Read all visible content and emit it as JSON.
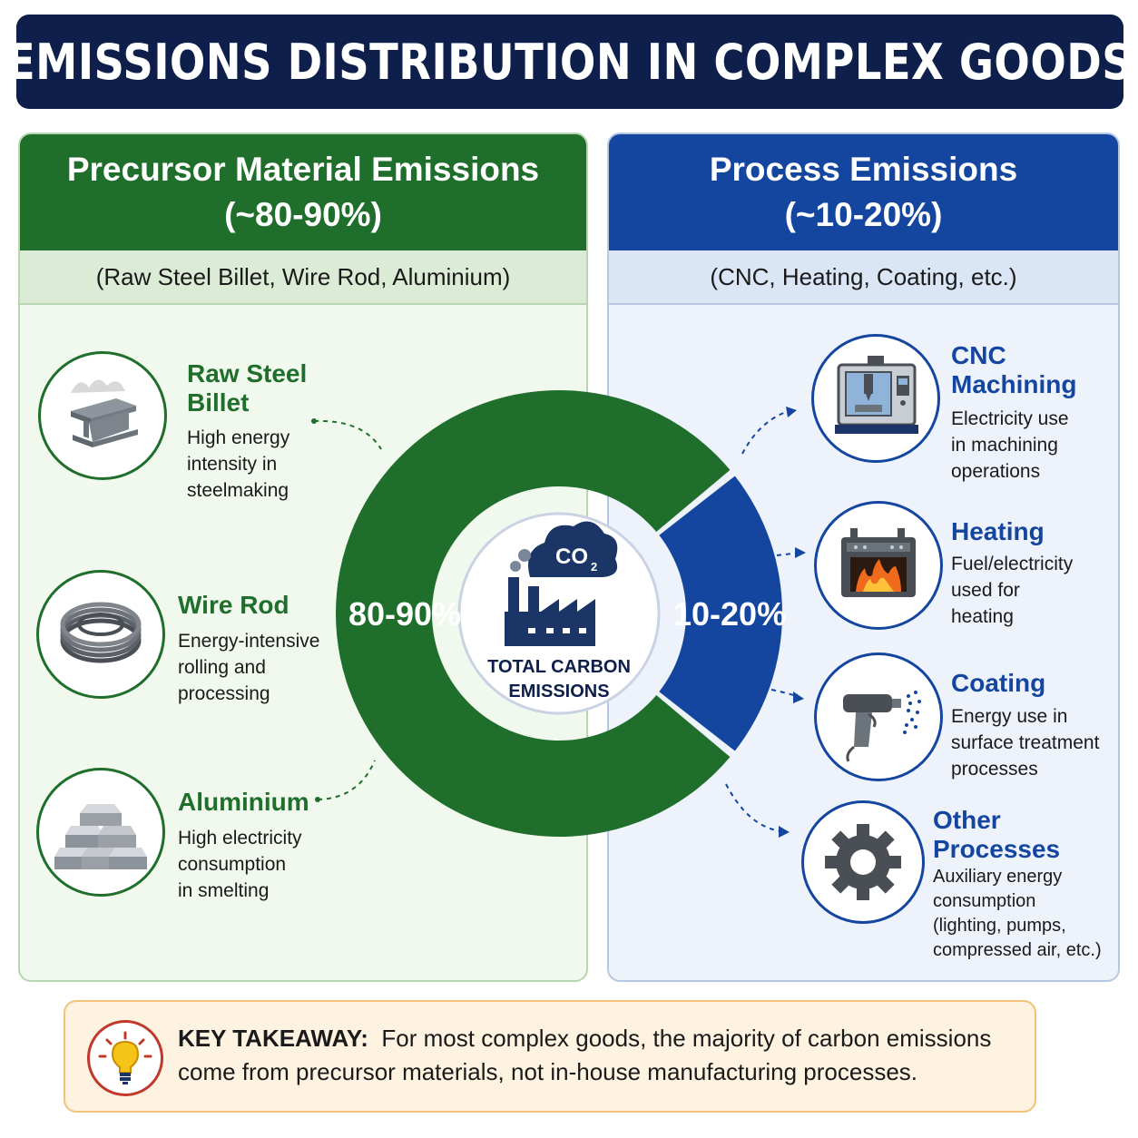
{
  "title": "EMISSIONS DISTRIBUTION IN COMPLEX GOODS",
  "left_panel": {
    "heading": "Precursor Material Emissions",
    "range": "(~80-90%)",
    "subtitle": "(Raw Steel Billet, Wire Rod, Aluminium)",
    "items": [
      {
        "title_line1": "Raw Steel",
        "title_line2": "Billet",
        "desc": [
          "High energy",
          "intensity in",
          "steelmaking"
        ],
        "icon": "steel-billet-icon"
      },
      {
        "title_line1": "Wire Rod",
        "desc": [
          "Energy-intensive",
          "rolling and",
          "processing"
        ],
        "icon": "wire-coil-icon"
      },
      {
        "title_line1": "Aluminium",
        "desc": [
          "High electricity",
          "consumption",
          "in smelting"
        ],
        "icon": "aluminium-ingots-icon"
      }
    ]
  },
  "right_panel": {
    "heading": "Process Emissions",
    "range": "(~10-20%)",
    "subtitle": "(CNC, Heating, Coating, etc.)",
    "items": [
      {
        "title_line1": "CNC",
        "title_line2": "Machining",
        "desc": [
          "Electricity use",
          "in machining",
          "operations"
        ],
        "icon": "cnc-machine-icon"
      },
      {
        "title_line1": "Heating",
        "desc": [
          "Fuel/electricity",
          "used for",
          "heating"
        ],
        "icon": "furnace-icon"
      },
      {
        "title_line1": "Coating",
        "desc": [
          "Energy use in",
          "surface treatment",
          "processes"
        ],
        "icon": "spray-gun-icon"
      },
      {
        "title_line1": "Other",
        "title_line2": "Processes",
        "desc": [
          "Auxiliary energy",
          "consumption",
          "(lighting, pumps,",
          "compressed air, etc.)"
        ],
        "icon": "gear-icon"
      }
    ]
  },
  "donut": {
    "precursor_label": "80-90%",
    "process_label": "10-20%",
    "precursor_share": 0.85,
    "process_share": 0.15,
    "precursor_color": "#1f6e2b",
    "process_color": "#1446a0",
    "center_line1": "TOTAL CARBON",
    "center_line2": "EMISSIONS",
    "co2_text": "CO",
    "co2_sub": "2"
  },
  "takeaway": {
    "label": "KEY TAKEAWAY:",
    "text": "For most complex goods, the majority of carbon emissions come from precursor materials, not in-house manufacturing processes."
  }
}
